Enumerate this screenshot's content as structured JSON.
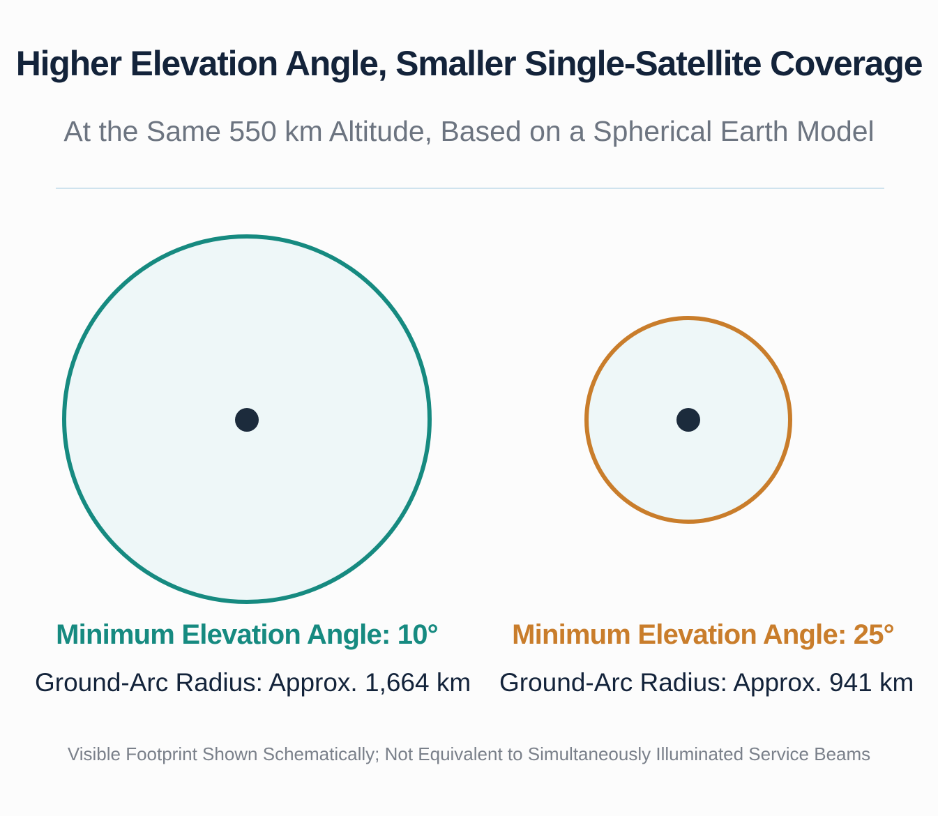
{
  "title": "Higher Elevation Angle, Smaller Single-Satellite Coverage",
  "subtitle": "At the Same 550 km Altitude, Based on a Spherical Earth Model",
  "footprints": [
    {
      "angle_label": "Minimum Elevation Angle: 10°",
      "radius_label": "Ground-Arc Radius: Approx. 1,664 km",
      "radius_km": 1664,
      "color": "#168a80"
    },
    {
      "angle_label": "Minimum Elevation Angle: 25°",
      "radius_label": "Ground-Arc Radius: Approx. 941 km",
      "radius_km": 941,
      "color": "#c97d2b"
    }
  ],
  "fill_color": "#eef7f8",
  "center_color": "#1c2b3c",
  "note": "Visible Footprint Shown Schematically; Not Equivalent to Simultaneously Illuminated Service Beams"
}
